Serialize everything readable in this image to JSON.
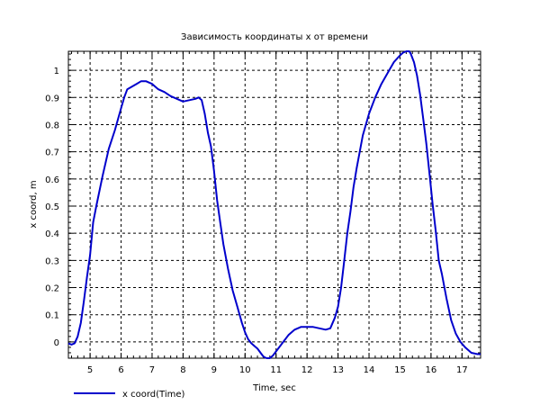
{
  "chart_data": {
    "type": "line",
    "title": "Зависимость координаты x от времени",
    "xlabel": "Time, sec",
    "ylabel": "x coord, m",
    "xlim": [
      4.3,
      17.6
    ],
    "ylim": [
      -0.06,
      1.07
    ],
    "xticks": [
      5,
      6,
      7,
      8,
      9,
      10,
      11,
      12,
      13,
      14,
      15,
      16,
      17
    ],
    "yticks": [
      0,
      0.1,
      0.2,
      0.3,
      0.4,
      0.5,
      0.6,
      0.7,
      0.8,
      0.9,
      1
    ],
    "ytick_labels": [
      "0",
      "0.1",
      "0.2",
      "0.3",
      "0.4",
      "0.5",
      "0.6",
      "0.7",
      "0.8",
      "0.9",
      "1"
    ],
    "grid": true,
    "legend_position": "bottom-left",
    "series": [
      {
        "name": "x coord(Time)",
        "color": "#0000cc",
        "x": [
          4.3,
          4.4,
          4.5,
          4.6,
          4.7,
          4.8,
          4.9,
          5.0,
          5.1,
          5.2,
          5.4,
          5.6,
          5.8,
          6.0,
          6.1,
          6.2,
          6.35,
          6.5,
          6.65,
          6.8,
          6.9,
          7.0,
          7.1,
          7.2,
          7.4,
          7.6,
          7.8,
          8.0,
          8.2,
          8.4,
          8.5,
          8.6,
          8.7,
          8.8,
          8.9,
          9.0,
          9.1,
          9.2,
          9.3,
          9.45,
          9.6,
          9.75,
          9.9,
          10.0,
          10.1,
          10.2,
          10.3,
          10.4,
          10.5,
          10.6,
          10.7,
          10.8,
          10.9,
          11.0,
          11.2,
          11.4,
          11.6,
          11.8,
          12.0,
          12.2,
          12.4,
          12.6,
          12.75,
          12.9,
          13.0,
          13.1,
          13.2,
          13.3,
          13.4,
          13.5,
          13.6,
          13.8,
          14.0,
          14.2,
          14.4,
          14.6,
          14.8,
          15.0,
          15.1,
          15.2,
          15.3,
          15.35,
          15.45,
          15.55,
          15.65,
          15.75,
          15.85,
          15.95,
          16.05,
          16.15,
          16.25,
          16.35,
          16.5,
          16.65,
          16.8,
          16.95,
          17.1,
          17.3,
          17.5,
          17.6
        ],
        "y": [
          -0.005,
          -0.01,
          -0.005,
          0.02,
          0.07,
          0.15,
          0.24,
          0.32,
          0.44,
          0.5,
          0.61,
          0.71,
          0.78,
          0.86,
          0.9,
          0.93,
          0.94,
          0.95,
          0.96,
          0.96,
          0.955,
          0.95,
          0.94,
          0.93,
          0.92,
          0.905,
          0.895,
          0.885,
          0.89,
          0.895,
          0.9,
          0.89,
          0.84,
          0.77,
          0.72,
          0.63,
          0.52,
          0.44,
          0.36,
          0.27,
          0.19,
          0.13,
          0.07,
          0.035,
          0.01,
          -0.005,
          -0.015,
          -0.025,
          -0.04,
          -0.055,
          -0.06,
          -0.06,
          -0.05,
          -0.035,
          -0.005,
          0.025,
          0.045,
          0.055,
          0.055,
          0.055,
          0.05,
          0.045,
          0.05,
          0.09,
          0.13,
          0.2,
          0.3,
          0.4,
          0.48,
          0.57,
          0.64,
          0.76,
          0.84,
          0.9,
          0.95,
          0.99,
          1.03,
          1.055,
          1.065,
          1.07,
          1.07,
          1.06,
          1.03,
          0.98,
          0.91,
          0.82,
          0.73,
          0.62,
          0.51,
          0.41,
          0.3,
          0.25,
          0.16,
          0.08,
          0.03,
          0.0,
          -0.02,
          -0.04,
          -0.045,
          -0.045
        ]
      }
    ]
  }
}
